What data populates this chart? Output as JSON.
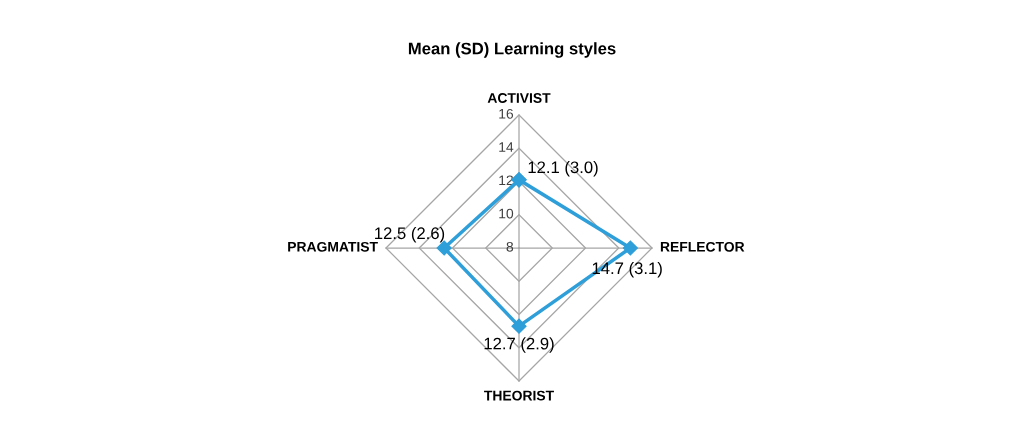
{
  "chart_data": {
    "type": "radar",
    "title": "Mean (SD) Learning styles",
    "categories": [
      "ACTIVIST",
      "REFLECTOR",
      "THEORIST",
      "PRAGMATIST"
    ],
    "series": [
      {
        "color": "#2e9fd9",
        "values": [
          12.1,
          14.7,
          12.7,
          12.5
        ],
        "value_labels": [
          "12.1 (3.0)",
          "14.7 (3.1)",
          "12.7 (2.9)",
          "12.5 (2.6)"
        ]
      }
    ],
    "ylim": [
      8,
      16
    ],
    "yticks": [
      8,
      10,
      12,
      14,
      16
    ],
    "grid": true,
    "marker": "diamond",
    "line_style": "solid"
  }
}
